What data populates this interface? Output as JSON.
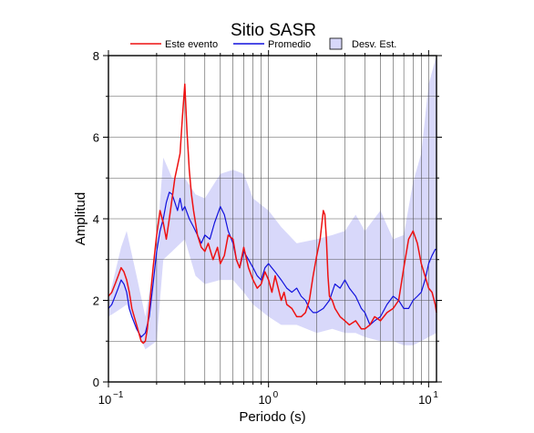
{
  "chart_data": {
    "type": "line",
    "title": "Sitio SASR",
    "xlabel": "Periodo (s)",
    "ylabel": "Amplitud",
    "xscale": "log",
    "xlim": [
      0.1,
      11.2
    ],
    "ylim": [
      0,
      8
    ],
    "grid": true,
    "legend_placement": "top",
    "x_ticks": [
      {
        "value": 0.1,
        "base": "10",
        "exp": "−1"
      },
      {
        "value": 1,
        "base": "10",
        "exp": "0"
      },
      {
        "value": 10,
        "base": "10",
        "exp": "1"
      }
    ],
    "y_ticks": [
      {
        "value": 0,
        "label": "0"
      },
      {
        "value": 2,
        "label": "2"
      },
      {
        "value": 4,
        "label": "4"
      },
      {
        "value": 6,
        "label": "6"
      },
      {
        "value": 8,
        "label": "8"
      }
    ],
    "legend": [
      {
        "label": "Este evento",
        "kind": "line",
        "color": "#ee1111"
      },
      {
        "label": "Promedio",
        "kind": "line",
        "color": "#1111dd"
      },
      {
        "label": "Desv. Est.",
        "kind": "patch",
        "color": "#d8d8fa"
      }
    ],
    "band": {
      "name": "Desv. Est.",
      "color": "#d8d8fa",
      "x": [
        0.1,
        0.12,
        0.13,
        0.15,
        0.17,
        0.2,
        0.22,
        0.25,
        0.3,
        0.35,
        0.4,
        0.5,
        0.6,
        0.7,
        0.8,
        1.0,
        1.2,
        1.5,
        2.0,
        2.5,
        3.0,
        3.5,
        4.0,
        5.0,
        6.0,
        7.0,
        8.0,
        9.0,
        10.0,
        11.2
      ],
      "upper": [
        2.0,
        3.3,
        3.7,
        2.6,
        1.6,
        3.3,
        5.5,
        5.0,
        5.0,
        4.6,
        4.5,
        5.1,
        5.2,
        5.1,
        4.5,
        4.2,
        3.8,
        3.4,
        3.5,
        3.6,
        3.7,
        4.1,
        3.7,
        4.2,
        3.5,
        3.6,
        4.9,
        5.6,
        7.3,
        8.0
      ],
      "lower": [
        1.6,
        1.8,
        1.9,
        1.3,
        0.8,
        1.0,
        3.0,
        3.2,
        3.5,
        2.6,
        2.4,
        2.5,
        2.5,
        2.2,
        1.9,
        1.6,
        1.4,
        1.4,
        1.2,
        1.3,
        1.2,
        1.2,
        1.1,
        1.0,
        1.0,
        0.9,
        0.9,
        1.0,
        1.1,
        1.2
      ]
    },
    "series": [
      {
        "name": "Este evento",
        "color": "#ee1111",
        "x": [
          0.1,
          0.105,
          0.11,
          0.115,
          0.12,
          0.125,
          0.13,
          0.135,
          0.14,
          0.15,
          0.16,
          0.165,
          0.17,
          0.175,
          0.18,
          0.19,
          0.2,
          0.21,
          0.22,
          0.23,
          0.24,
          0.25,
          0.26,
          0.27,
          0.28,
          0.29,
          0.3,
          0.31,
          0.32,
          0.33,
          0.34,
          0.36,
          0.38,
          0.4,
          0.42,
          0.45,
          0.48,
          0.5,
          0.53,
          0.56,
          0.6,
          0.63,
          0.66,
          0.7,
          0.75,
          0.8,
          0.85,
          0.9,
          0.95,
          1.0,
          1.05,
          1.1,
          1.15,
          1.2,
          1.25,
          1.3,
          1.4,
          1.5,
          1.6,
          1.7,
          1.8,
          1.9,
          2.0,
          2.1,
          2.2,
          2.25,
          2.3,
          2.35,
          2.4,
          2.5,
          2.6,
          2.8,
          3.0,
          3.2,
          3.5,
          3.8,
          4.0,
          4.3,
          4.6,
          5.0,
          5.5,
          6.0,
          6.5,
          7.0,
          7.5,
          8.0,
          8.5,
          9.0,
          9.5,
          10.0,
          10.5,
          11.0,
          11.2
        ],
        "values": [
          2.1,
          2.2,
          2.4,
          2.6,
          2.8,
          2.7,
          2.5,
          2.2,
          1.8,
          1.4,
          1.0,
          0.95,
          1.0,
          1.3,
          1.8,
          2.8,
          3.6,
          4.2,
          3.9,
          3.5,
          4.0,
          4.5,
          5.0,
          5.3,
          5.6,
          6.5,
          7.3,
          6.1,
          5.2,
          4.6,
          4.2,
          3.6,
          3.3,
          3.2,
          3.4,
          3.0,
          3.3,
          2.9,
          3.1,
          3.6,
          3.5,
          3.0,
          2.8,
          3.3,
          2.8,
          2.5,
          2.3,
          2.4,
          2.7,
          2.5,
          2.2,
          2.6,
          2.3,
          2.0,
          2.2,
          1.9,
          1.8,
          1.6,
          1.6,
          1.7,
          2.0,
          2.6,
          3.1,
          3.5,
          4.2,
          4.1,
          3.5,
          2.6,
          2.1,
          2.0,
          1.8,
          1.6,
          1.5,
          1.4,
          1.5,
          1.3,
          1.3,
          1.4,
          1.6,
          1.5,
          1.7,
          1.8,
          2.0,
          2.8,
          3.5,
          3.7,
          3.4,
          2.9,
          2.6,
          2.3,
          2.2,
          1.9,
          1.7
        ]
      },
      {
        "name": "Promedio",
        "color": "#1111dd",
        "x": [
          0.1,
          0.105,
          0.11,
          0.115,
          0.12,
          0.125,
          0.13,
          0.135,
          0.14,
          0.15,
          0.16,
          0.17,
          0.18,
          0.19,
          0.2,
          0.21,
          0.22,
          0.23,
          0.24,
          0.25,
          0.26,
          0.27,
          0.28,
          0.29,
          0.3,
          0.32,
          0.34,
          0.36,
          0.38,
          0.4,
          0.43,
          0.46,
          0.5,
          0.53,
          0.56,
          0.6,
          0.63,
          0.66,
          0.7,
          0.75,
          0.8,
          0.85,
          0.9,
          0.95,
          1.0,
          1.1,
          1.2,
          1.3,
          1.4,
          1.5,
          1.6,
          1.7,
          1.8,
          1.9,
          2.0,
          2.2,
          2.4,
          2.6,
          2.8,
          3.0,
          3.2,
          3.5,
          3.8,
          4.0,
          4.3,
          4.6,
          5.0,
          5.5,
          6.0,
          6.5,
          7.0,
          7.5,
          8.0,
          8.5,
          9.0,
          9.5,
          10.0,
          10.5,
          11.0,
          11.2
        ],
        "values": [
          1.8,
          1.9,
          2.1,
          2.3,
          2.5,
          2.4,
          2.2,
          1.8,
          1.6,
          1.3,
          1.1,
          1.2,
          1.6,
          2.4,
          3.2,
          3.7,
          4.0,
          4.4,
          4.65,
          4.6,
          4.4,
          4.2,
          4.5,
          4.2,
          4.3,
          4.0,
          3.8,
          3.6,
          3.4,
          3.6,
          3.5,
          3.9,
          4.3,
          4.1,
          3.7,
          3.4,
          3.0,
          2.8,
          3.2,
          3.0,
          2.8,
          2.6,
          2.5,
          2.8,
          2.9,
          2.7,
          2.5,
          2.3,
          2.2,
          2.3,
          2.1,
          2.0,
          1.8,
          1.7,
          1.7,
          1.8,
          2.0,
          2.4,
          2.3,
          2.5,
          2.3,
          2.1,
          1.8,
          1.7,
          1.4,
          1.5,
          1.6,
          1.9,
          2.1,
          2.0,
          1.8,
          1.8,
          2.0,
          2.1,
          2.2,
          2.5,
          2.9,
          3.1,
          3.25,
          3.25
        ]
      }
    ]
  }
}
